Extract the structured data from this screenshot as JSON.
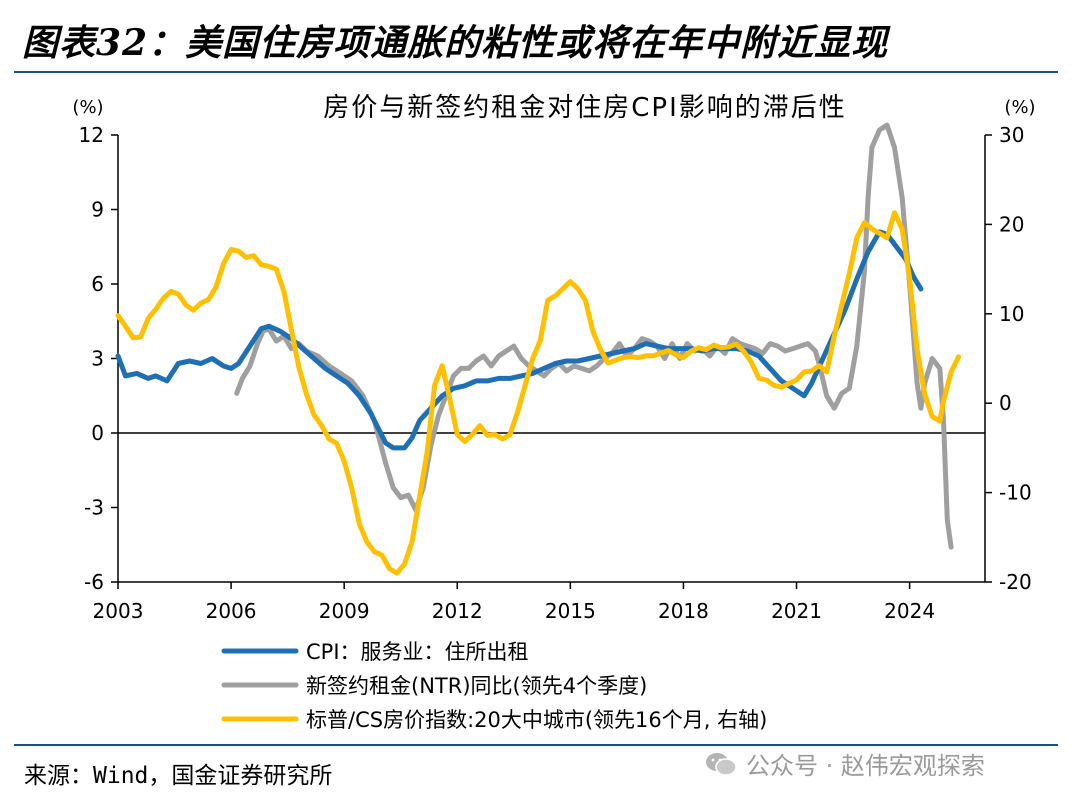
{
  "figure_title": "图表32：美国住房项通胀的粘性或将在年中附近显现",
  "source": "来源：Wind，国金证券研究所",
  "watermark": "公众号 · 赵伟宏观探索",
  "chart_data": {
    "type": "line",
    "title": "房价与新签约租金对住房CPI影响的滞后性",
    "left_axis": {
      "unit": "(%)",
      "ylim": [
        -6,
        12
      ],
      "ticks": [
        -6,
        -3,
        0,
        3,
        6,
        9,
        12
      ]
    },
    "right_axis": {
      "unit": "(%)",
      "ylim": [
        -20,
        30
      ],
      "ticks": [
        -20,
        -10,
        0,
        10,
        20,
        30
      ]
    },
    "x_axis": {
      "xlim": [
        2003,
        2026
      ],
      "ticks": [
        2003,
        2006,
        2009,
        2012,
        2015,
        2018,
        2021,
        2024
      ]
    },
    "legend_position": "bottom",
    "series": [
      {
        "name": "CPI：服务业：住所出租",
        "axis": "left",
        "color": "#1f6fb4",
        "points": [
          [
            2003.0,
            3.1
          ],
          [
            2003.2,
            2.3
          ],
          [
            2003.5,
            2.4
          ],
          [
            2003.8,
            2.2
          ],
          [
            2004.0,
            2.3
          ],
          [
            2004.3,
            2.1
          ],
          [
            2004.6,
            2.8
          ],
          [
            2004.9,
            2.9
          ],
          [
            2005.2,
            2.8
          ],
          [
            2005.5,
            3.0
          ],
          [
            2005.8,
            2.7
          ],
          [
            2006.0,
            2.6
          ],
          [
            2006.2,
            2.8
          ],
          [
            2006.5,
            3.5
          ],
          [
            2006.8,
            4.2
          ],
          [
            2007.0,
            4.3
          ],
          [
            2007.3,
            4.1
          ],
          [
            2007.6,
            3.8
          ],
          [
            2007.9,
            3.4
          ],
          [
            2008.2,
            3.0
          ],
          [
            2008.5,
            2.6
          ],
          [
            2008.8,
            2.3
          ],
          [
            2009.1,
            2.0
          ],
          [
            2009.4,
            1.5
          ],
          [
            2009.7,
            0.8
          ],
          [
            2009.9,
            0.2
          ],
          [
            2010.1,
            -0.4
          ],
          [
            2010.3,
            -0.6
          ],
          [
            2010.6,
            -0.6
          ],
          [
            2010.8,
            -0.2
          ],
          [
            2011.0,
            0.5
          ],
          [
            2011.3,
            1.0
          ],
          [
            2011.6,
            1.5
          ],
          [
            2011.9,
            1.8
          ],
          [
            2012.2,
            1.9
          ],
          [
            2012.5,
            2.1
          ],
          [
            2012.8,
            2.1
          ],
          [
            2013.1,
            2.2
          ],
          [
            2013.4,
            2.2
          ],
          [
            2013.7,
            2.3
          ],
          [
            2014.0,
            2.4
          ],
          [
            2014.3,
            2.6
          ],
          [
            2014.6,
            2.8
          ],
          [
            2014.9,
            2.9
          ],
          [
            2015.2,
            2.9
          ],
          [
            2015.5,
            3.0
          ],
          [
            2015.8,
            3.1
          ],
          [
            2016.1,
            3.2
          ],
          [
            2016.4,
            3.3
          ],
          [
            2016.7,
            3.4
          ],
          [
            2017.0,
            3.6
          ],
          [
            2017.3,
            3.5
          ],
          [
            2017.6,
            3.4
          ],
          [
            2017.9,
            3.4
          ],
          [
            2018.2,
            3.4
          ],
          [
            2018.5,
            3.3
          ],
          [
            2018.8,
            3.4
          ],
          [
            2019.1,
            3.4
          ],
          [
            2019.4,
            3.4
          ],
          [
            2019.7,
            3.3
          ],
          [
            2020.0,
            3.1
          ],
          [
            2020.3,
            2.6
          ],
          [
            2020.6,
            2.1
          ],
          [
            2020.9,
            1.8
          ],
          [
            2021.2,
            1.5
          ],
          [
            2021.4,
            2.0
          ],
          [
            2021.7,
            3.0
          ],
          [
            2022.0,
            4.0
          ],
          [
            2022.3,
            5.0
          ],
          [
            2022.6,
            6.2
          ],
          [
            2022.9,
            7.3
          ],
          [
            2023.2,
            8.1
          ],
          [
            2023.4,
            8.0
          ],
          [
            2023.6,
            7.6
          ],
          [
            2023.9,
            7.0
          ],
          [
            2024.1,
            6.3
          ],
          [
            2024.3,
            5.8
          ]
        ]
      },
      {
        "name": "新签约租金(NTR)同比(领先4个季度)",
        "axis": "left",
        "color": "#9f9f9f",
        "points": [
          [
            2006.15,
            1.6
          ],
          [
            2006.3,
            2.2
          ],
          [
            2006.5,
            2.7
          ],
          [
            2006.7,
            3.6
          ],
          [
            2006.85,
            4.1
          ],
          [
            2007.0,
            4.2
          ],
          [
            2007.2,
            3.7
          ],
          [
            2007.4,
            3.9
          ],
          [
            2007.6,
            3.4
          ],
          [
            2007.8,
            3.6
          ],
          [
            2008.0,
            3.3
          ],
          [
            2008.3,
            3.1
          ],
          [
            2008.6,
            2.7
          ],
          [
            2008.9,
            2.4
          ],
          [
            2009.2,
            2.1
          ],
          [
            2009.5,
            1.5
          ],
          [
            2009.8,
            0.5
          ],
          [
            2010.1,
            -1.2
          ],
          [
            2010.3,
            -2.2
          ],
          [
            2010.5,
            -2.6
          ],
          [
            2010.7,
            -2.5
          ],
          [
            2010.9,
            -3.1
          ],
          [
            2011.1,
            -2.2
          ],
          [
            2011.3,
            -0.5
          ],
          [
            2011.5,
            0.7
          ],
          [
            2011.7,
            1.5
          ],
          [
            2011.9,
            2.3
          ],
          [
            2012.1,
            2.6
          ],
          [
            2012.3,
            2.6
          ],
          [
            2012.5,
            2.9
          ],
          [
            2012.7,
            3.1
          ],
          [
            2012.9,
            2.7
          ],
          [
            2013.1,
            3.1
          ],
          [
            2013.3,
            3.3
          ],
          [
            2013.5,
            3.5
          ],
          [
            2013.7,
            3.0
          ],
          [
            2013.9,
            2.7
          ],
          [
            2014.1,
            2.5
          ],
          [
            2014.3,
            2.3
          ],
          [
            2014.5,
            2.6
          ],
          [
            2014.7,
            2.8
          ],
          [
            2014.9,
            2.5
          ],
          [
            2015.1,
            2.7
          ],
          [
            2015.3,
            2.6
          ],
          [
            2015.5,
            2.5
          ],
          [
            2015.7,
            2.7
          ],
          [
            2015.9,
            3.0
          ],
          [
            2016.1,
            3.2
          ],
          [
            2016.3,
            3.6
          ],
          [
            2016.5,
            3.1
          ],
          [
            2016.7,
            3.4
          ],
          [
            2016.9,
            3.8
          ],
          [
            2017.1,
            3.7
          ],
          [
            2017.3,
            3.5
          ],
          [
            2017.5,
            3.0
          ],
          [
            2017.7,
            3.6
          ],
          [
            2017.9,
            3.0
          ],
          [
            2018.1,
            3.6
          ],
          [
            2018.3,
            3.3
          ],
          [
            2018.5,
            3.4
          ],
          [
            2018.7,
            3.1
          ],
          [
            2018.9,
            3.5
          ],
          [
            2019.1,
            3.2
          ],
          [
            2019.3,
            3.8
          ],
          [
            2019.5,
            3.6
          ],
          [
            2019.7,
            3.5
          ],
          [
            2019.9,
            3.4
          ],
          [
            2020.1,
            3.2
          ],
          [
            2020.3,
            3.6
          ],
          [
            2020.5,
            3.5
          ],
          [
            2020.7,
            3.3
          ],
          [
            2020.9,
            3.4
          ],
          [
            2021.1,
            3.5
          ],
          [
            2021.3,
            3.6
          ],
          [
            2021.5,
            3.3
          ],
          [
            2021.6,
            2.8
          ],
          [
            2021.8,
            1.5
          ],
          [
            2022.0,
            1.0
          ],
          [
            2022.2,
            1.6
          ],
          [
            2022.4,
            1.8
          ],
          [
            2022.6,
            3.5
          ],
          [
            2022.8,
            6.5
          ],
          [
            2022.9,
            9.5
          ],
          [
            2023.0,
            11.5
          ],
          [
            2023.2,
            12.2
          ],
          [
            2023.4,
            12.4
          ],
          [
            2023.6,
            11.5
          ],
          [
            2023.8,
            9.5
          ],
          [
            2024.0,
            6.0
          ],
          [
            2024.2,
            2.0
          ],
          [
            2024.3,
            1.0
          ],
          [
            2024.4,
            2.0
          ],
          [
            2024.6,
            3.0
          ],
          [
            2024.8,
            2.6
          ],
          [
            2024.9,
            0.5
          ],
          [
            2025.0,
            -3.5
          ],
          [
            2025.1,
            -4.6
          ]
        ]
      },
      {
        "name": "标普/CS房价指数:20大中城市(领先16个月, 右轴)",
        "axis": "right",
        "color": "#ffc000",
        "points": [
          [
            2003.0,
            9.8
          ],
          [
            2003.2,
            8.6
          ],
          [
            2003.4,
            7.3
          ],
          [
            2003.6,
            7.4
          ],
          [
            2003.8,
            9.5
          ],
          [
            2004.0,
            10.5
          ],
          [
            2004.2,
            11.7
          ],
          [
            2004.4,
            12.5
          ],
          [
            2004.6,
            12.2
          ],
          [
            2004.8,
            11.0
          ],
          [
            2005.0,
            10.4
          ],
          [
            2005.2,
            11.2
          ],
          [
            2005.4,
            11.6
          ],
          [
            2005.6,
            13.0
          ],
          [
            2005.8,
            15.6
          ],
          [
            2006.0,
            17.2
          ],
          [
            2006.2,
            17.0
          ],
          [
            2006.4,
            16.3
          ],
          [
            2006.6,
            16.5
          ],
          [
            2006.8,
            15.5
          ],
          [
            2007.0,
            15.3
          ],
          [
            2007.2,
            15.0
          ],
          [
            2007.4,
            12.5
          ],
          [
            2007.6,
            8.2
          ],
          [
            2007.8,
            4.0
          ],
          [
            2008.0,
            1.0
          ],
          [
            2008.2,
            -1.3
          ],
          [
            2008.4,
            -2.5
          ],
          [
            2008.6,
            -4.0
          ],
          [
            2008.8,
            -4.5
          ],
          [
            2009.0,
            -6.5
          ],
          [
            2009.2,
            -9.5
          ],
          [
            2009.4,
            -13.5
          ],
          [
            2009.6,
            -15.5
          ],
          [
            2009.8,
            -16.6
          ],
          [
            2010.0,
            -17.0
          ],
          [
            2010.2,
            -18.5
          ],
          [
            2010.4,
            -19.0
          ],
          [
            2010.6,
            -18.0
          ],
          [
            2010.8,
            -15.5
          ],
          [
            2011.0,
            -10.5
          ],
          [
            2011.2,
            -5.5
          ],
          [
            2011.4,
            2.0
          ],
          [
            2011.6,
            4.2
          ],
          [
            2011.8,
            0.5
          ],
          [
            2012.0,
            -3.5
          ],
          [
            2012.2,
            -4.3
          ],
          [
            2012.4,
            -3.5
          ],
          [
            2012.6,
            -2.5
          ],
          [
            2012.8,
            -3.6
          ],
          [
            2013.0,
            -3.5
          ],
          [
            2013.2,
            -4.0
          ],
          [
            2013.4,
            -3.5
          ],
          [
            2013.6,
            -1.0
          ],
          [
            2013.8,
            2.0
          ],
          [
            2014.0,
            5.0
          ],
          [
            2014.2,
            7.0
          ],
          [
            2014.4,
            11.5
          ],
          [
            2014.6,
            12.0
          ],
          [
            2014.8,
            12.8
          ],
          [
            2015.0,
            13.6
          ],
          [
            2015.2,
            12.8
          ],
          [
            2015.4,
            11.5
          ],
          [
            2015.6,
            8.0
          ],
          [
            2015.8,
            6.0
          ],
          [
            2016.0,
            4.5
          ],
          [
            2016.2,
            4.8
          ],
          [
            2016.4,
            5.1
          ],
          [
            2016.6,
            5.2
          ],
          [
            2016.8,
            5.1
          ],
          [
            2017.0,
            5.3
          ],
          [
            2017.2,
            5.3
          ],
          [
            2017.4,
            5.6
          ],
          [
            2017.6,
            5.9
          ],
          [
            2017.8,
            5.4
          ],
          [
            2018.0,
            5.1
          ],
          [
            2018.2,
            5.8
          ],
          [
            2018.4,
            6.2
          ],
          [
            2018.6,
            6.0
          ],
          [
            2018.8,
            6.5
          ],
          [
            2019.0,
            6.2
          ],
          [
            2019.2,
            6.3
          ],
          [
            2019.4,
            6.6
          ],
          [
            2019.6,
            5.8
          ],
          [
            2019.8,
            4.6
          ],
          [
            2020.0,
            2.8
          ],
          [
            2020.2,
            2.6
          ],
          [
            2020.4,
            2.0
          ],
          [
            2020.6,
            1.8
          ],
          [
            2020.8,
            2.2
          ],
          [
            2021.0,
            2.6
          ],
          [
            2021.2,
            3.5
          ],
          [
            2021.4,
            3.6
          ],
          [
            2021.6,
            4.2
          ],
          [
            2021.8,
            3.5
          ],
          [
            2022.0,
            7.5
          ],
          [
            2022.2,
            11.0
          ],
          [
            2022.4,
            14.5
          ],
          [
            2022.6,
            18.5
          ],
          [
            2022.8,
            20.2
          ],
          [
            2023.0,
            19.5
          ],
          [
            2023.2,
            19.0
          ],
          [
            2023.4,
            18.5
          ],
          [
            2023.6,
            21.3
          ],
          [
            2023.8,
            19.5
          ],
          [
            2024.0,
            14.0
          ],
          [
            2024.2,
            6.0
          ],
          [
            2024.4,
            1.0
          ],
          [
            2024.6,
            -1.5
          ],
          [
            2024.8,
            -2.0
          ],
          [
            2024.9,
            0.2
          ],
          [
            2025.1,
            3.5
          ],
          [
            2025.3,
            5.2
          ]
        ]
      }
    ]
  }
}
